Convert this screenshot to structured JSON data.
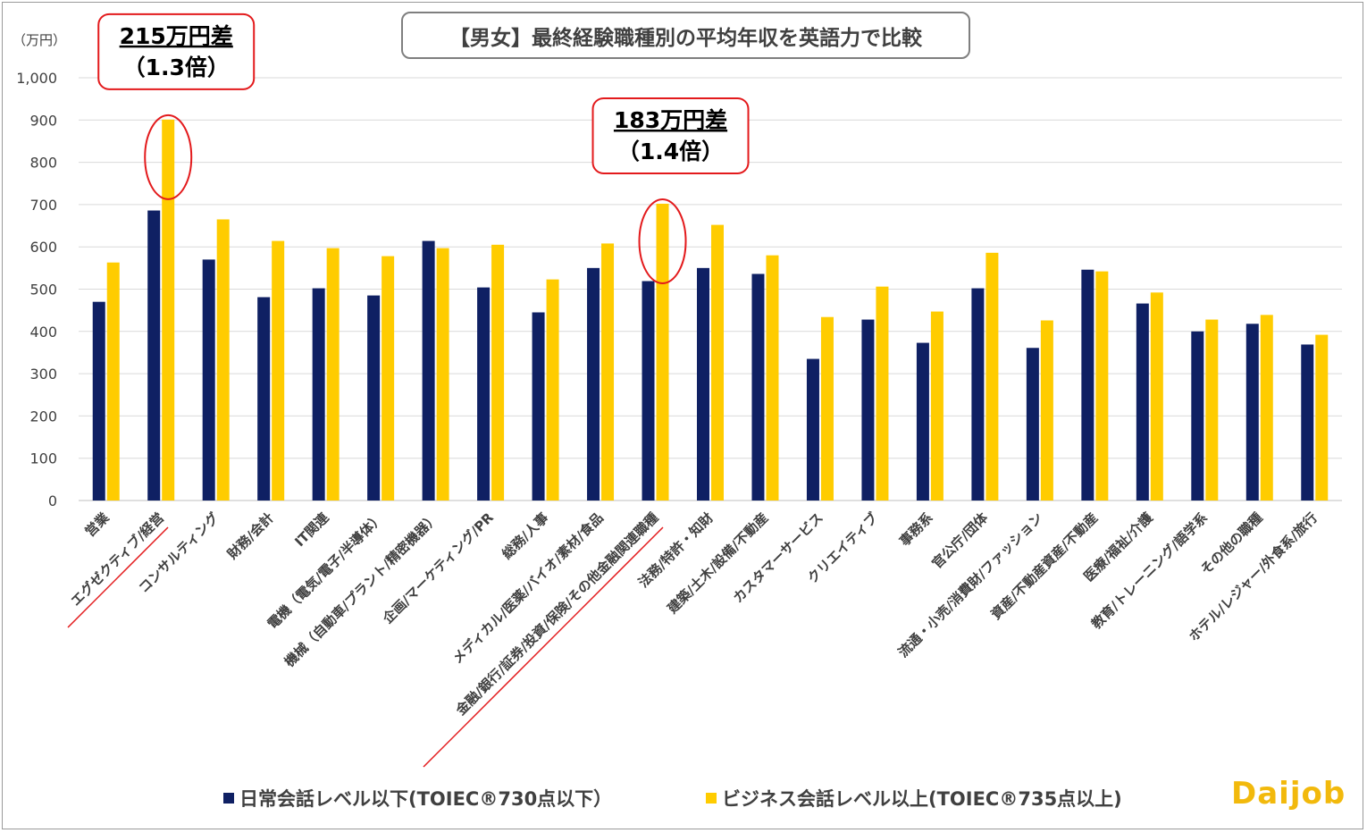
{
  "chart_data": {
    "type": "bar",
    "title": "【男女】最終経験職種別の平均年収を英語力で比較",
    "unit_label": "（万円）",
    "ylim": [
      0,
      1000
    ],
    "yticks": [
      "0",
      "100",
      "200",
      "300",
      "400",
      "500",
      "600",
      "700",
      "800",
      "900",
      "1,000"
    ],
    "grid": true,
    "legend_position": "bottom",
    "categories": [
      "営業",
      "エグゼクティブ/経営",
      "コンサルティング",
      "財務/会計",
      "IT関連",
      "電機（電気/電子/半導体）",
      "機械（自動車/プラント/精密機器）",
      "企画/マーケティング/PR",
      "総務/人事",
      "メディカル/医薬/バイオ/素材/食品",
      "金融/銀行/証券/投資/保険/その他金融関連職種",
      "法務/特許・知財",
      "建築/土木/設備/不動産",
      "カスタマーサービス",
      "クリエイティブ",
      "事務系",
      "官公庁/団体",
      "流通・小売/消費財/ファッション",
      "資産/不動産資産/不動産",
      "医療/福祉/介護",
      "教育/トレーニング/語学系",
      "その他の職種",
      "ホテル/レジャー/外食系/旅行"
    ],
    "series": [
      {
        "name": "日常会話レベル以下(TOIEC®730点以下）",
        "color": "#0f2063",
        "values": [
          470,
          686,
          570,
          481,
          502,
          485,
          614,
          504,
          445,
          550,
          519,
          550,
          536,
          335,
          428,
          373,
          502,
          361,
          546,
          466,
          400,
          418,
          369
        ]
      },
      {
        "name": "ビジネス会話レベル以上(TOIEC®735点以上)",
        "color": "#ffcc00",
        "values": [
          563,
          901,
          665,
          614,
          597,
          578,
          597,
          605,
          523,
          608,
          702,
          652,
          580,
          434,
          506,
          447,
          586,
          426,
          542,
          492,
          428,
          439,
          392
        ]
      }
    ],
    "annotations": [
      {
        "line1": "215万円差",
        "line2": "（1.3倍）",
        "category_index": 1
      },
      {
        "line1": "183万円差",
        "line2": "（1.4倍）",
        "category_index": 10
      }
    ],
    "highlight_color": "#e31a1c"
  },
  "logo_text": "Daijob"
}
